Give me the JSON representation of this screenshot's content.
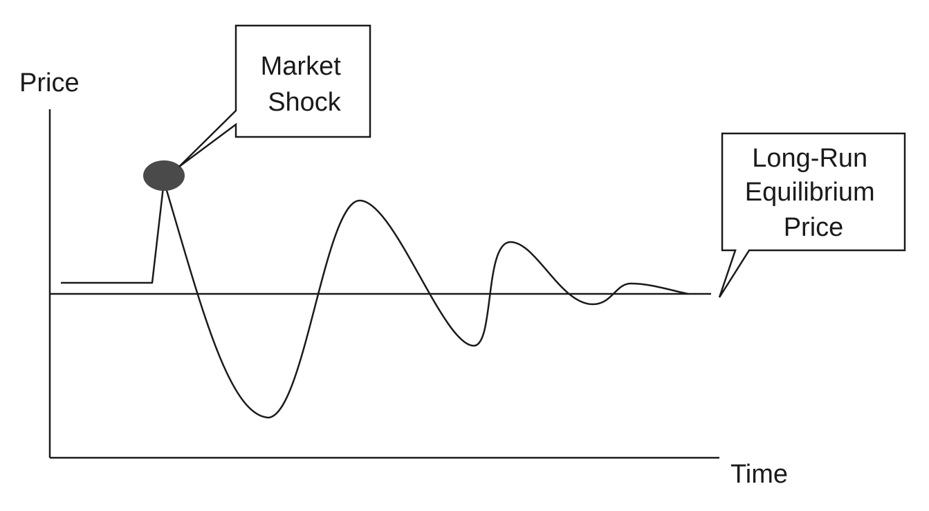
{
  "axes": {
    "y_label": "Price",
    "x_label": "Time"
  },
  "callouts": {
    "market_shock": {
      "line1": "Market",
      "line2": "Shock"
    },
    "equilibrium": {
      "line1": "Long-Run",
      "line2": "Equilibrium",
      "line3": "Price"
    }
  },
  "colors": {
    "ink": "#1a1a1a",
    "shock_marker": "#4a4a4a",
    "background": "#ffffff"
  }
}
